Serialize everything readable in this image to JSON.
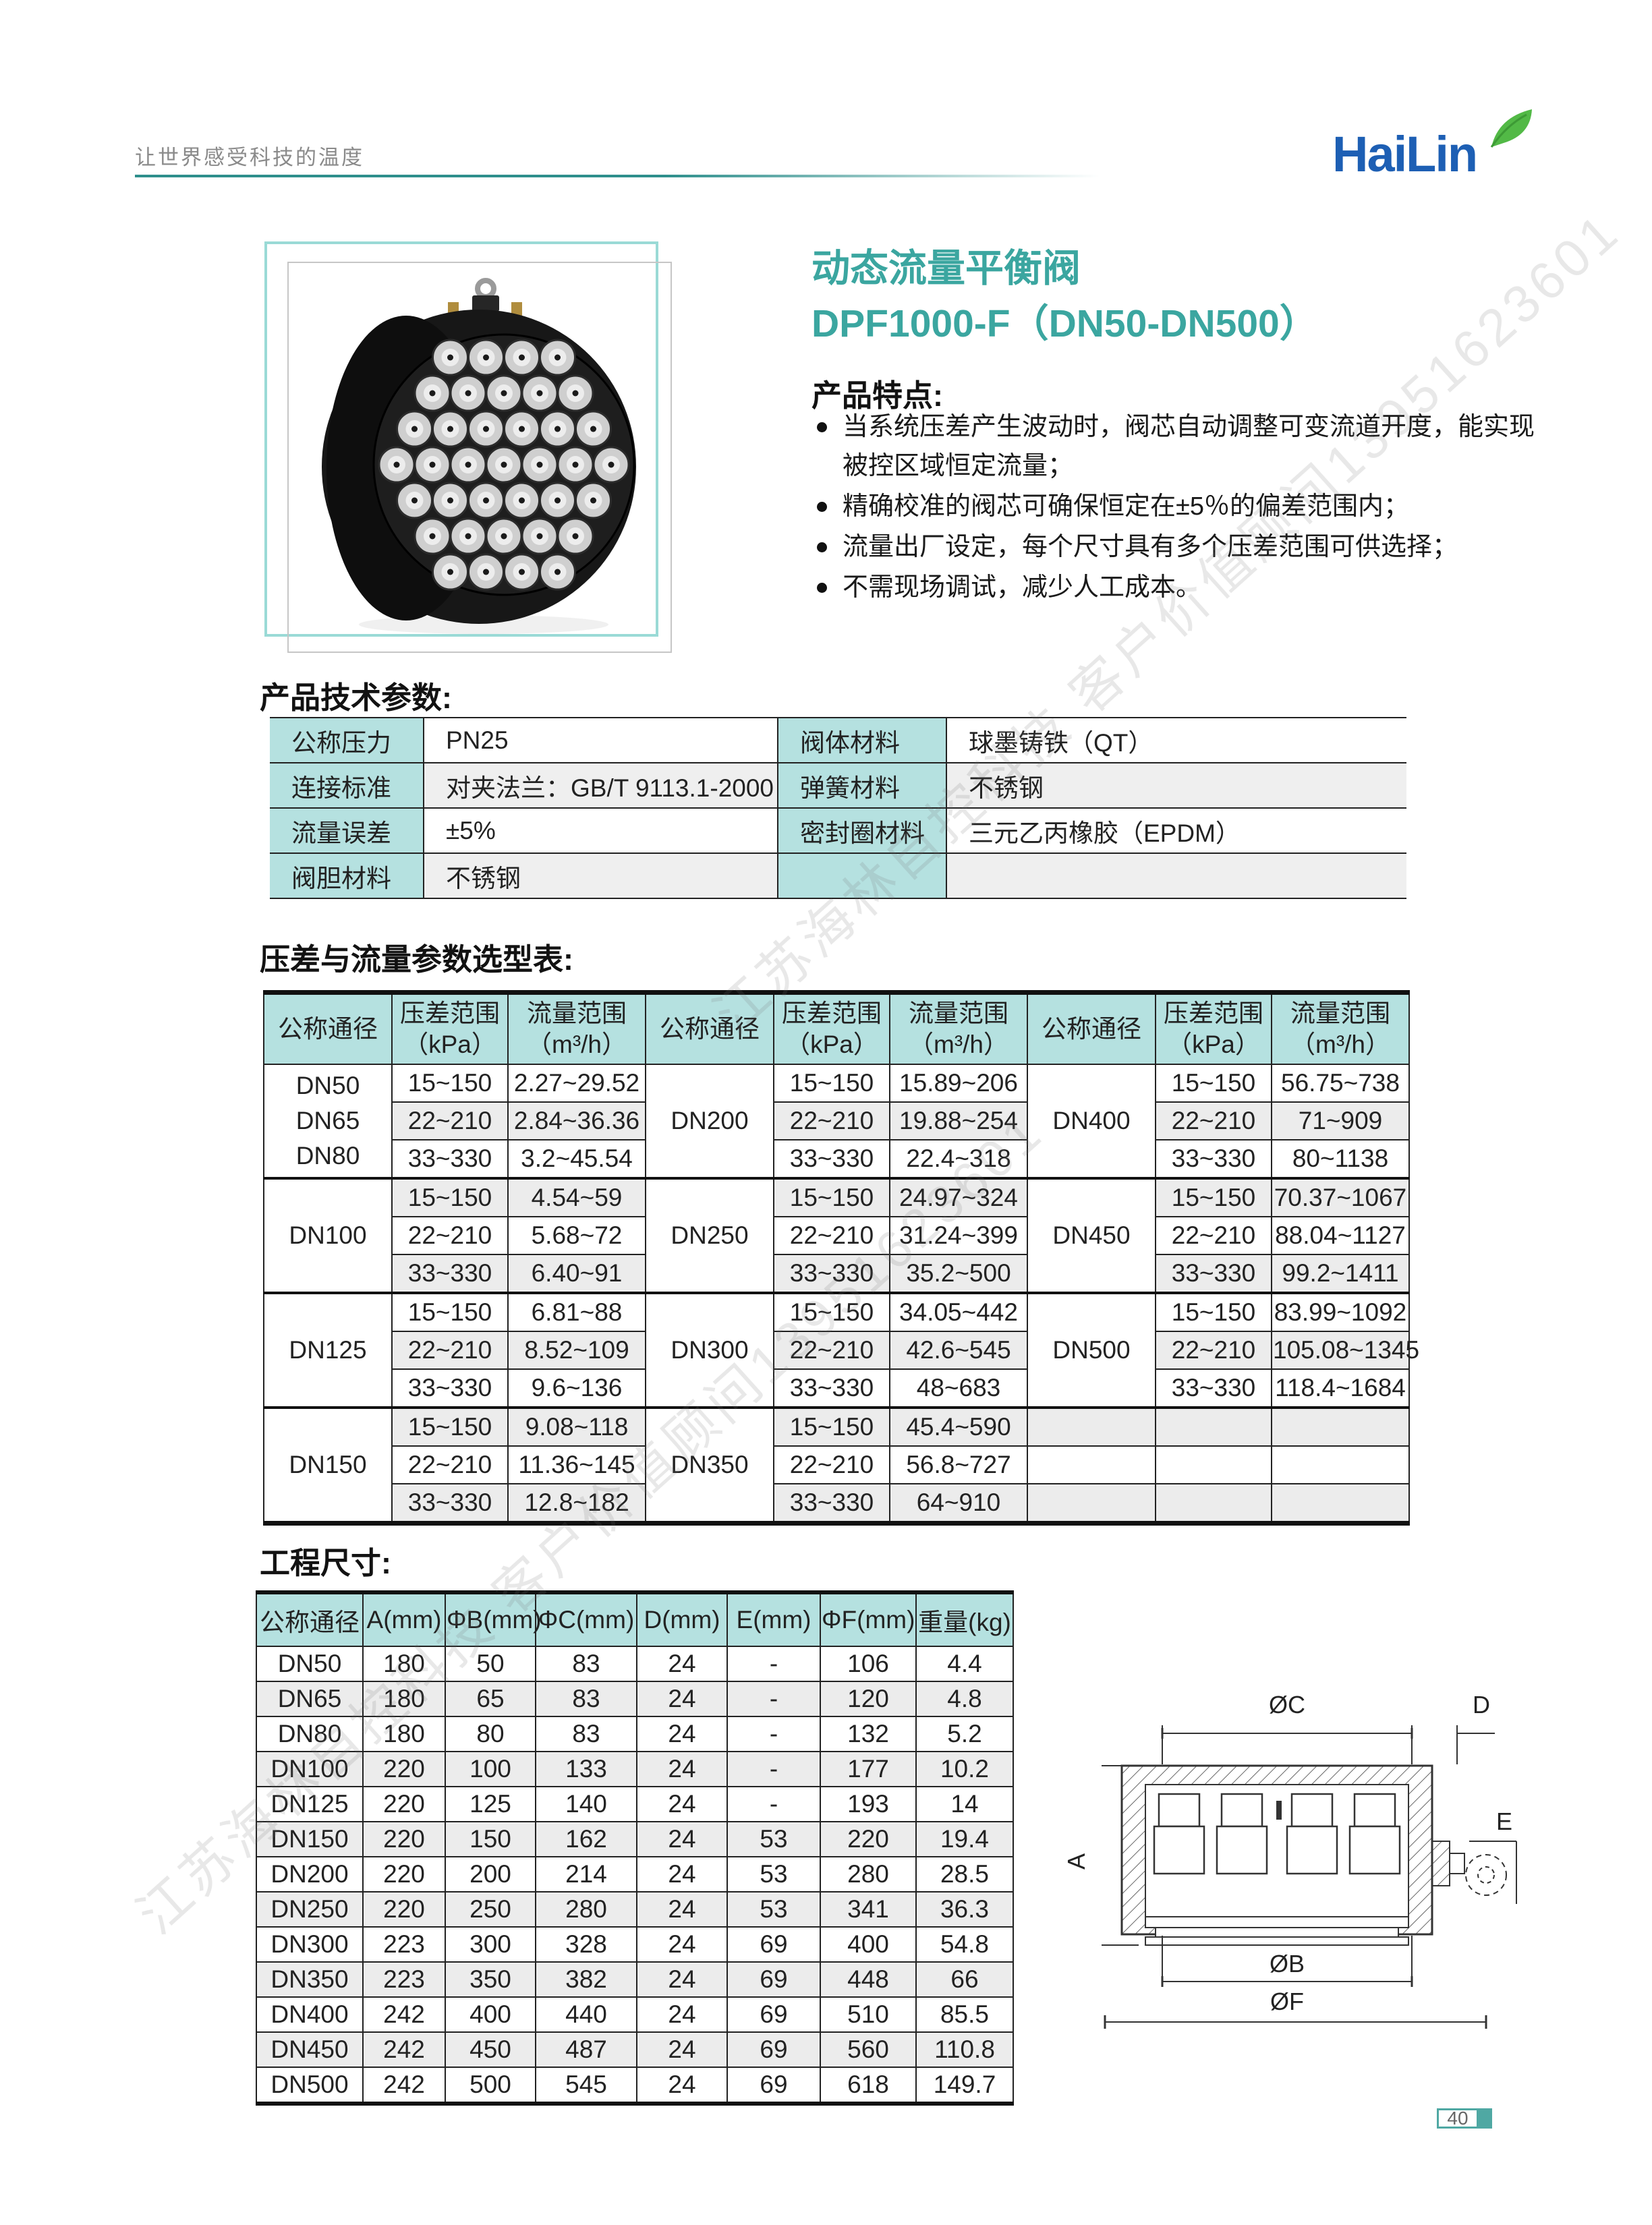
{
  "page": {
    "tagline": "让世界感受科技的温度",
    "logo_text": "HaiLin",
    "page_number": "40"
  },
  "product": {
    "title": "动态流量平衡阀",
    "model": "DPF1000-F（DN50-DN500）",
    "features_heading": "产品特点:",
    "features": [
      "当系统压差产生波动时，阀芯自动调整可变流道开度，能实现被控区域恒定流量；",
      "精确校准的阀芯可确保恒定在±5％的偏差范围内；",
      "流量出厂设定，每个尺寸具有多个压差范围可供选择；",
      "不需现场调试，减少人工成本。"
    ]
  },
  "tech_params": {
    "heading": "产品技术参数:",
    "rows": [
      {
        "label": "公称压力",
        "value": "PN25",
        "label2": "阀体材料",
        "value2": "球墨铸铁（QT）"
      },
      {
        "label": "连接标准",
        "value": "对夹法兰：GB/T 9113.1-2000",
        "label2": "弹簧材料",
        "value2": "不锈钢"
      },
      {
        "label": "流量误差",
        "value": "±5%",
        "label2": "密封圈材料",
        "value2": "三元乙丙橡胶（EPDM）"
      },
      {
        "label": "阀胆材料",
        "value": "不锈钢",
        "label2": "",
        "value2": ""
      }
    ]
  },
  "selection_table": {
    "heading": "压差与流量参数选型表:",
    "headers": {
      "dn": "公称通径",
      "dp": "压差范围",
      "dp_unit": "（kPa）",
      "flow": "流量范围",
      "flow_unit": "（m³/h）"
    },
    "groups": [
      {
        "dn_labels": [
          [
            "DN50",
            "DN65",
            "DN80"
          ],
          [
            "DN100"
          ],
          [
            "DN125"
          ],
          [
            "DN150"
          ]
        ],
        "rows": [
          [
            "15~150",
            "2.27~29.52"
          ],
          [
            "22~210",
            "2.84~36.36"
          ],
          [
            "33~330",
            "3.2~45.54"
          ],
          [
            "15~150",
            "4.54~59"
          ],
          [
            "22~210",
            "5.68~72"
          ],
          [
            "33~330",
            "6.40~91"
          ],
          [
            "15~150",
            "6.81~88"
          ],
          [
            "22~210",
            "8.52~109"
          ],
          [
            "33~330",
            "9.6~136"
          ],
          [
            "15~150",
            "9.08~118"
          ],
          [
            "22~210",
            "11.36~145"
          ],
          [
            "33~330",
            "12.8~182"
          ]
        ]
      },
      {
        "dn_labels": [
          [
            "DN200"
          ],
          [
            "DN250"
          ],
          [
            "DN300"
          ],
          [
            "DN350"
          ]
        ],
        "rows": [
          [
            "15~150",
            "15.89~206"
          ],
          [
            "22~210",
            "19.88~254"
          ],
          [
            "33~330",
            "22.4~318"
          ],
          [
            "15~150",
            "24.97~324"
          ],
          [
            "22~210",
            "31.24~399"
          ],
          [
            "33~330",
            "35.2~500"
          ],
          [
            "15~150",
            "34.05~442"
          ],
          [
            "22~210",
            "42.6~545"
          ],
          [
            "33~330",
            "48~683"
          ],
          [
            "15~150",
            "45.4~590"
          ],
          [
            "22~210",
            "56.8~727"
          ],
          [
            "33~330",
            "64~910"
          ]
        ]
      },
      {
        "dn_labels": [
          [
            "DN400"
          ],
          [
            "DN450"
          ],
          [
            "DN500"
          ],
          null
        ],
        "rows": [
          [
            "15~150",
            "56.75~738"
          ],
          [
            "22~210",
            "71~909"
          ],
          [
            "33~330",
            "80~1138"
          ],
          [
            "15~150",
            "70.37~1067"
          ],
          [
            "22~210",
            "88.04~1127"
          ],
          [
            "33~330",
            "99.2~1411"
          ],
          [
            "15~150",
            "83.99~1092"
          ],
          [
            "22~210",
            "105.08~1345"
          ],
          [
            "33~330",
            "118.4~1684"
          ],
          [
            "",
            ""
          ],
          [
            "",
            ""
          ],
          [
            "",
            ""
          ]
        ]
      }
    ]
  },
  "dimensions": {
    "heading": "工程尺寸:",
    "headers": [
      "公称通径",
      "A(mm)",
      "ΦB(mm)",
      "ΦC(mm)",
      "D(mm)",
      "E(mm)",
      "ΦF(mm)",
      "重量(kg)"
    ],
    "rows": [
      [
        "DN50",
        "180",
        "50",
        "83",
        "24",
        "-",
        "106",
        "4.4"
      ],
      [
        "DN65",
        "180",
        "65",
        "83",
        "24",
        "-",
        "120",
        "4.8"
      ],
      [
        "DN80",
        "180",
        "80",
        "83",
        "24",
        "-",
        "132",
        "5.2"
      ],
      [
        "DN100",
        "220",
        "100",
        "133",
        "24",
        "-",
        "177",
        "10.2"
      ],
      [
        "DN125",
        "220",
        "125",
        "140",
        "24",
        "-",
        "193",
        "14"
      ],
      [
        "DN150",
        "220",
        "150",
        "162",
        "24",
        "53",
        "220",
        "19.4"
      ],
      [
        "DN200",
        "220",
        "200",
        "214",
        "24",
        "53",
        "280",
        "28.5"
      ],
      [
        "DN250",
        "220",
        "250",
        "280",
        "24",
        "53",
        "341",
        "36.3"
      ],
      [
        "DN300",
        "223",
        "300",
        "328",
        "24",
        "69",
        "400",
        "54.8"
      ],
      [
        "DN350",
        "223",
        "350",
        "382",
        "24",
        "69",
        "448",
        "66"
      ],
      [
        "DN400",
        "242",
        "400",
        "440",
        "24",
        "69",
        "510",
        "85.5"
      ],
      [
        "DN450",
        "242",
        "450",
        "487",
        "24",
        "69",
        "560",
        "110.8"
      ],
      [
        "DN500",
        "242",
        "500",
        "545",
        "24",
        "69",
        "618",
        "149.7"
      ]
    ]
  },
  "drawing": {
    "labels": {
      "c": "ØC",
      "d": "D",
      "e": "E",
      "a": "A",
      "b": "ØB",
      "f": "ØF"
    }
  },
  "watermark": {
    "text": "江苏海林自控科技 客户价值顾问13951623601"
  },
  "colors": {
    "accent_teal": "#3BA6A0",
    "table_header_teal": "#B5E1E0",
    "logo_blue": "#1D5FB4",
    "leaf_green": "#52B946"
  }
}
